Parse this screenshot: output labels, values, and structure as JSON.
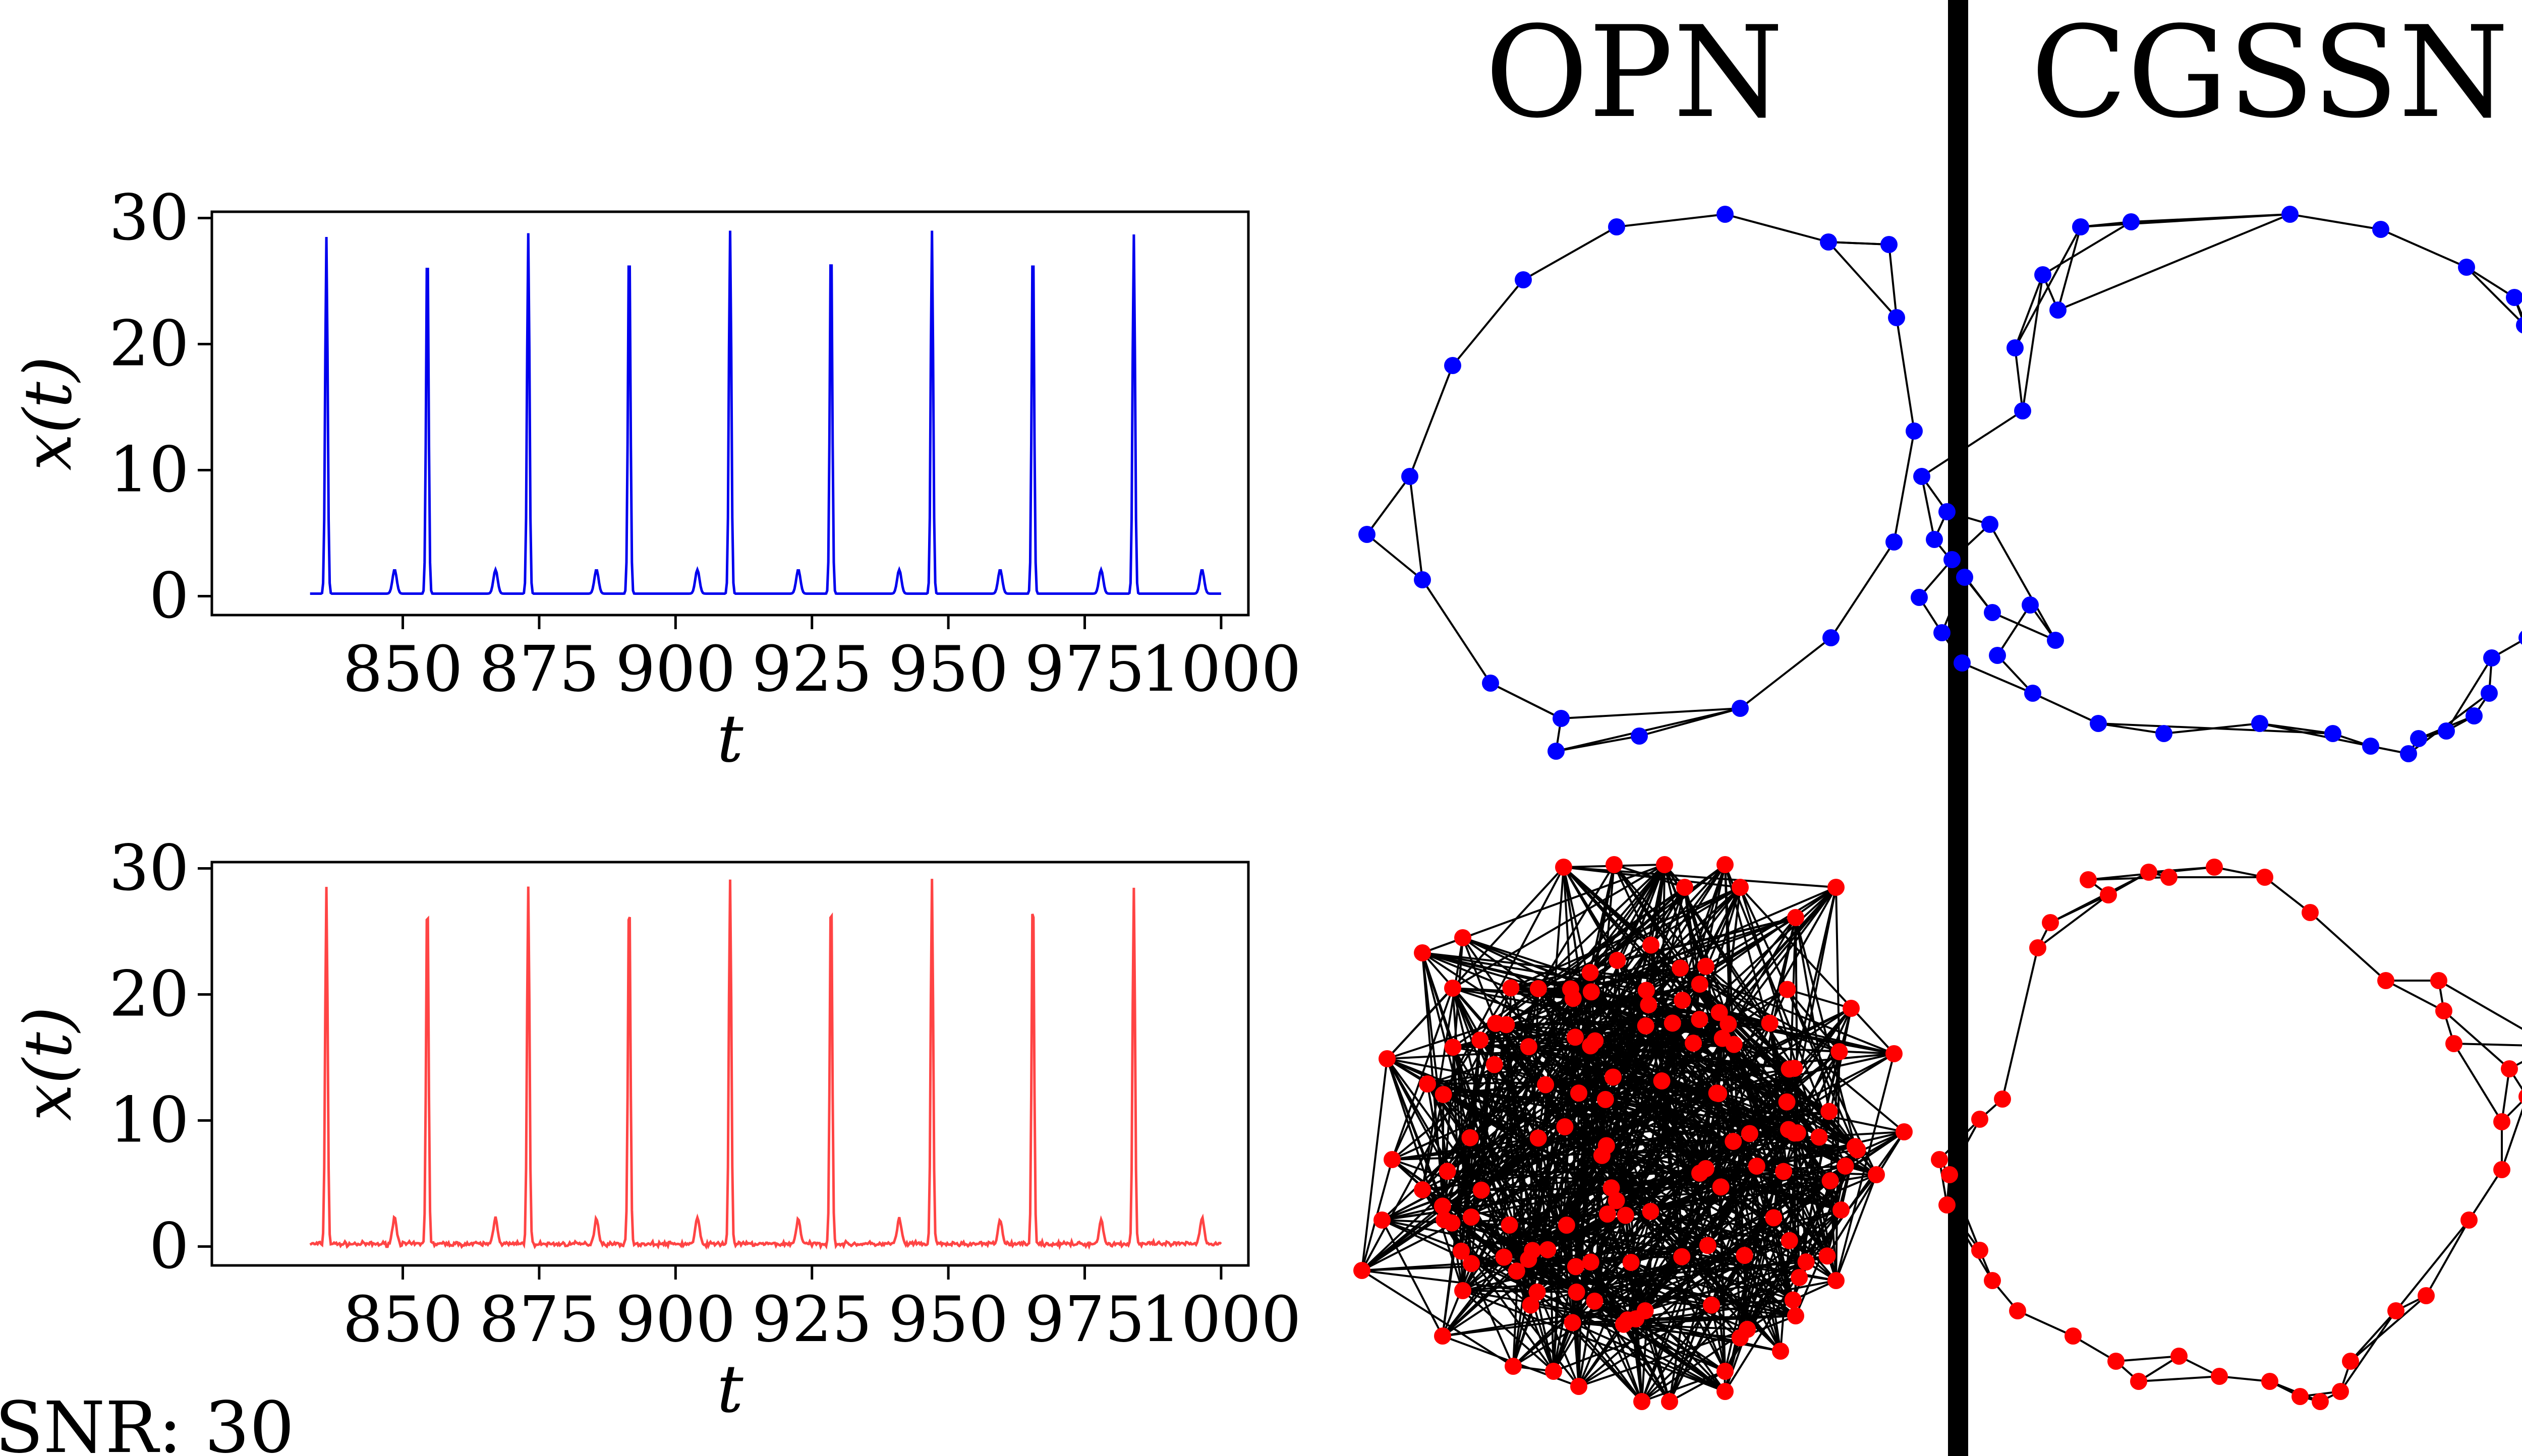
{
  "figure": {
    "titles": {
      "left": "OPN",
      "right": "CGSSN"
    },
    "snr_label": "SNR: 30",
    "colors": {
      "clean": "#0000ee",
      "noisy": "#ff4444",
      "node_clean": "#0000ff",
      "node_noisy": "#ff0000",
      "edge": "#000000"
    }
  },
  "chart_data": [
    {
      "type": "line",
      "name": "clean",
      "xlabel": "t",
      "ylabel": "x(t)",
      "xlim": [
        815,
        1005
      ],
      "ylim": [
        -1.5,
        30.5
      ],
      "xticks": [
        850,
        875,
        900,
        925,
        950,
        975,
        1000
      ],
      "yticks": [
        0,
        10,
        20,
        30
      ],
      "xtick_labels": [
        "850",
        "875",
        "900",
        "925",
        "950",
        "975",
        "1000"
      ],
      "ytick_labels": [
        "0",
        "10",
        "20",
        "30"
      ],
      "x_range": [
        833,
        1000
      ],
      "baseline": 0.2,
      "big_peaks": [
        [
          836,
          28.5
        ],
        [
          854.5,
          28.6
        ],
        [
          873,
          28.8
        ],
        [
          891.5,
          28.8
        ],
        [
          910,
          29.0
        ],
        [
          928.5,
          28.9
        ],
        [
          947,
          29.0
        ],
        [
          965.5,
          28.8
        ],
        [
          984,
          28.7
        ]
      ],
      "small_peaks": [
        [
          848.5,
          2.1
        ],
        [
          867,
          2.1
        ],
        [
          885.5,
          2.1
        ],
        [
          904,
          2.1
        ],
        [
          922.5,
          2.1
        ],
        [
          941,
          2.1
        ],
        [
          959.5,
          2.1
        ],
        [
          978,
          2.1
        ],
        [
          996.5,
          2.1
        ]
      ],
      "noise": 0
    },
    {
      "type": "line",
      "name": "noisy",
      "xlabel": "t",
      "ylabel": "x(t)",
      "xlim": [
        815,
        1005
      ],
      "ylim": [
        -1.5,
        30.5
      ],
      "xticks": [
        850,
        875,
        900,
        925,
        950,
        975,
        1000
      ],
      "yticks": [
        0,
        10,
        20,
        30
      ],
      "xtick_labels": [
        "850",
        "875",
        "900",
        "925",
        "950",
        "975",
        "1000"
      ],
      "ytick_labels": [
        "0",
        "10",
        "20",
        "30"
      ],
      "x_range": [
        833,
        1000
      ],
      "baseline": 0.2,
      "big_peaks": [
        [
          836,
          28.6
        ],
        [
          854.5,
          28.6
        ],
        [
          873,
          28.7
        ],
        [
          891.5,
          28.8
        ],
        [
          910,
          29.1
        ],
        [
          928.5,
          28.9
        ],
        [
          947,
          29.0
        ],
        [
          965.5,
          28.9
        ],
        [
          984,
          28.5
        ]
      ],
      "small_peaks": [
        [
          848.5,
          2.3
        ],
        [
          867,
          2.3
        ],
        [
          885.5,
          2.2
        ],
        [
          904,
          2.2
        ],
        [
          922.5,
          2.2
        ],
        [
          941,
          2.2
        ],
        [
          959.5,
          2.1
        ],
        [
          978,
          2.1
        ],
        [
          996.5,
          2.3
        ]
      ],
      "noise": 0.3
    }
  ]
}
